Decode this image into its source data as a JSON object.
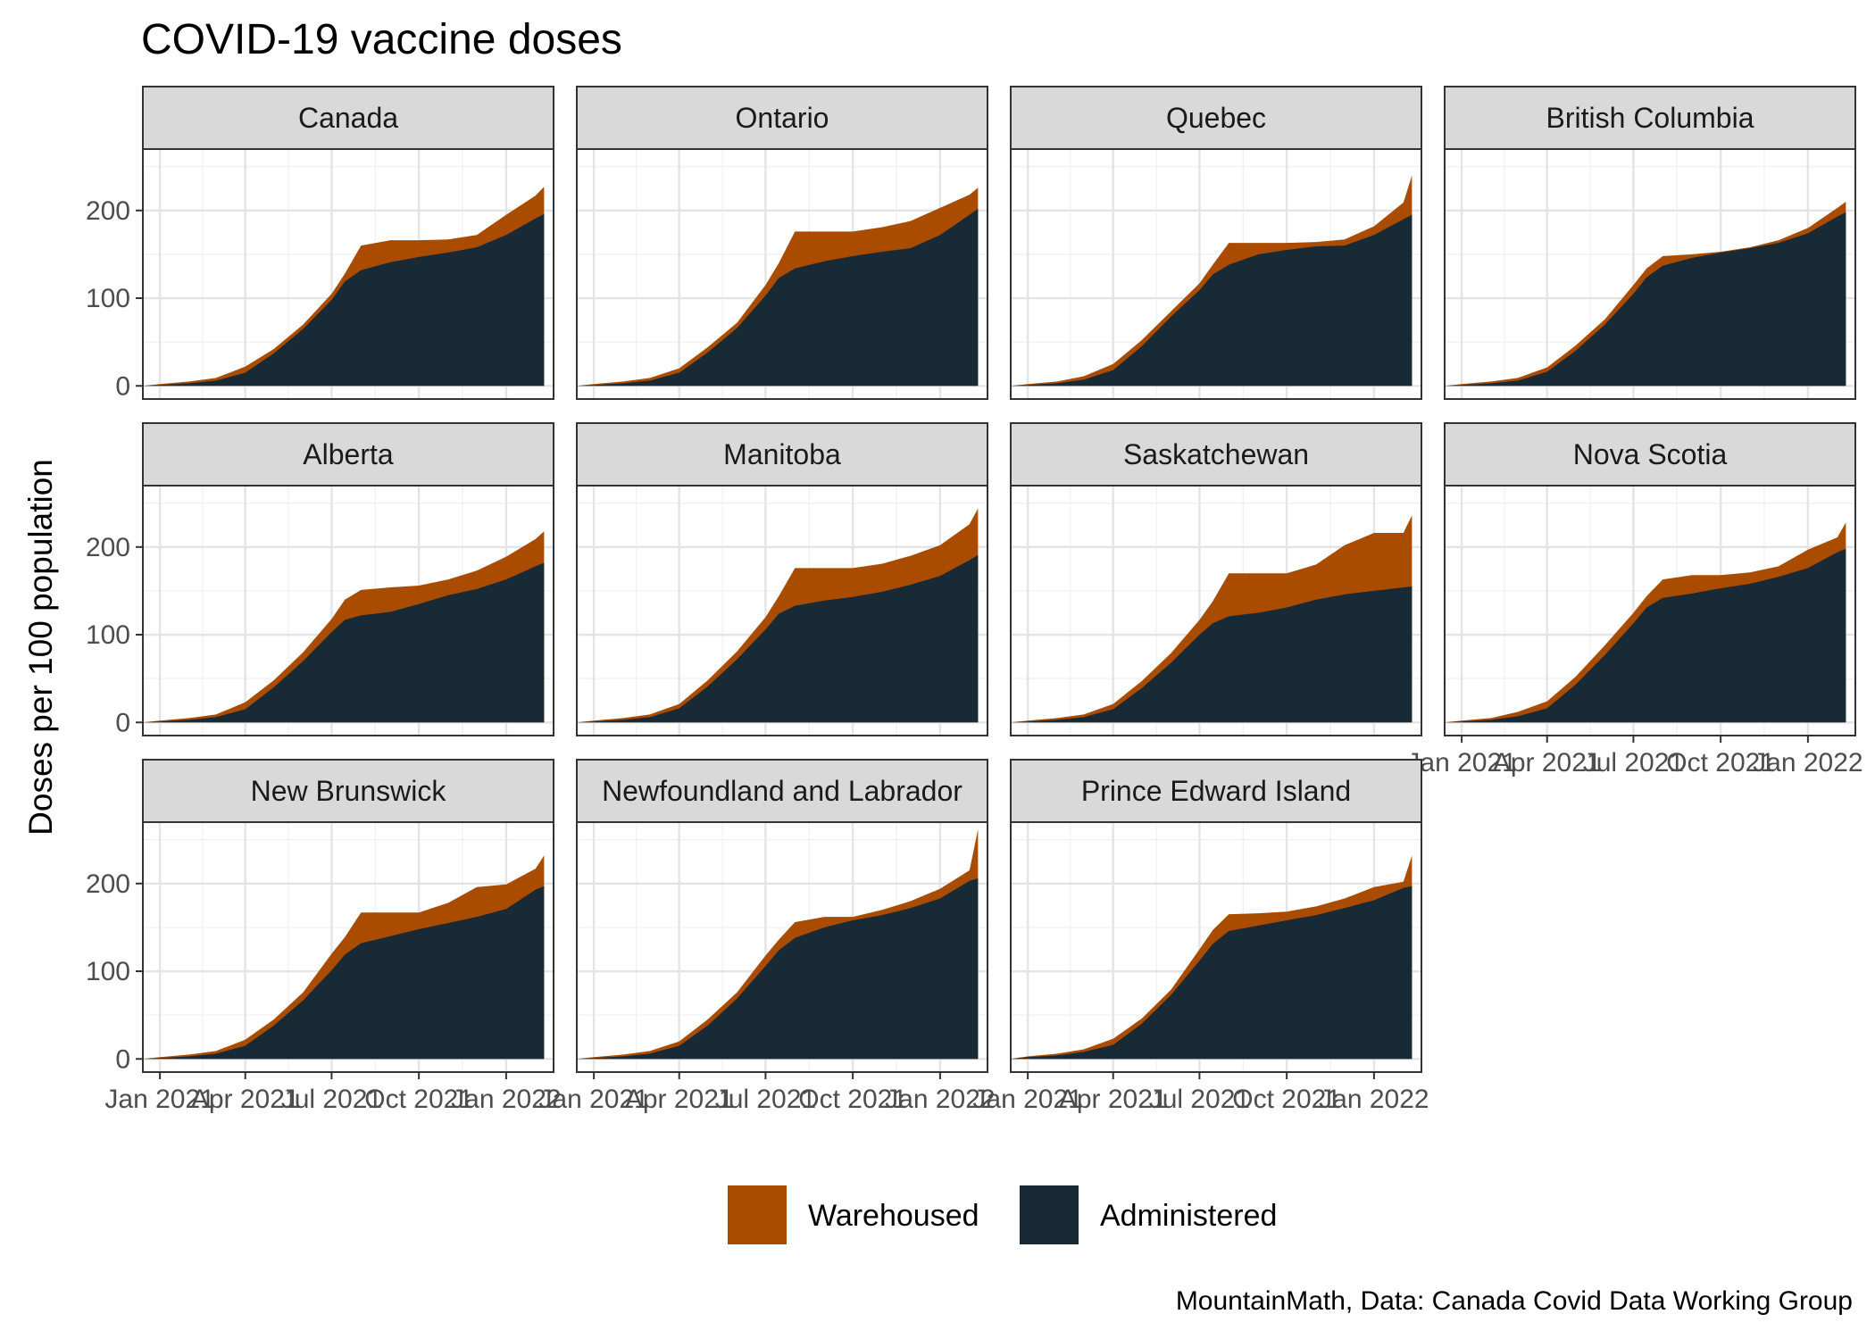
{
  "chart_data": {
    "type": "area",
    "title": "COVID-19 vaccine doses",
    "ylabel": "Doses per 100 population",
    "xlabel": "",
    "caption": "MountainMath, Data: Canada Covid Data Working Group",
    "xlim": [
      "2020-12-14",
      "2022-02-20"
    ],
    "ylim": [
      -15,
      270
    ],
    "x_ticks": [
      "Jan 2021",
      "Apr 2021",
      "Jul 2021",
      "Oct 2021",
      "Jan 2022"
    ],
    "x_tick_dates": [
      "2021-01-01",
      "2021-04-01",
      "2021-07-01",
      "2021-10-01",
      "2022-01-01"
    ],
    "y_ticks": [
      0,
      100,
      200
    ],
    "grid": true,
    "stacked": true,
    "legend_position": "bottom",
    "legend": [
      {
        "name": "Warehoused",
        "color": "#A94C00"
      },
      {
        "name": "Administered",
        "color": "#182A36"
      }
    ],
    "dates": [
      "2020-12-14",
      "2021-01-01",
      "2021-02-01",
      "2021-03-01",
      "2021-04-01",
      "2021-05-01",
      "2021-06-01",
      "2021-07-01",
      "2021-07-15",
      "2021-08-01",
      "2021-09-01",
      "2021-10-01",
      "2021-11-01",
      "2021-12-01",
      "2022-01-01",
      "2022-02-01",
      "2022-02-10"
    ],
    "panels": [
      {
        "region": "Canada",
        "administered": [
          0,
          1,
          3,
          6,
          15,
          37,
          65,
          98,
          119,
          132,
          141,
          147,
          152,
          158,
          172,
          191,
          196
        ],
        "total": [
          0,
          2,
          5,
          9,
          22,
          42,
          70,
          105,
          128,
          160,
          166,
          166,
          167,
          172,
          195,
          217,
          227
        ]
      },
      {
        "region": "Ontario",
        "administered": [
          0,
          1,
          3,
          6,
          15,
          38,
          66,
          103,
          123,
          134,
          142,
          148,
          153,
          157,
          172,
          195,
          202
        ],
        "total": [
          0,
          2,
          5,
          9,
          20,
          44,
          72,
          115,
          140,
          176,
          176,
          176,
          181,
          188,
          203,
          218,
          226
        ]
      },
      {
        "region": "Quebec",
        "administered": [
          0,
          1,
          3,
          7,
          18,
          45,
          79,
          109,
          127,
          138,
          150,
          155,
          159,
          160,
          172,
          190,
          195
        ],
        "total": [
          0,
          2,
          5,
          11,
          25,
          52,
          85,
          117,
          138,
          163,
          163,
          163,
          164,
          167,
          182,
          209,
          240
        ]
      },
      {
        "region": "British Columbia",
        "administered": [
          0,
          1,
          3,
          6,
          16,
          40,
          70,
          105,
          124,
          137,
          146,
          152,
          157,
          163,
          174,
          193,
          198
        ],
        "total": [
          0,
          2,
          5,
          9,
          21,
          46,
          76,
          115,
          134,
          148,
          150,
          153,
          158,
          166,
          180,
          203,
          210
        ]
      },
      {
        "region": "Alberta",
        "administered": [
          0,
          1,
          3,
          6,
          15,
          40,
          70,
          103,
          117,
          122,
          126,
          135,
          145,
          152,
          163,
          178,
          182
        ],
        "total": [
          0,
          2,
          5,
          9,
          23,
          48,
          80,
          118,
          140,
          151,
          154,
          156,
          163,
          173,
          189,
          209,
          218
        ]
      },
      {
        "region": "Manitoba",
        "administered": [
          0,
          1,
          3,
          6,
          16,
          41,
          72,
          106,
          124,
          133,
          139,
          143,
          149,
          157,
          167,
          185,
          191
        ],
        "total": [
          0,
          2,
          5,
          9,
          21,
          48,
          81,
          120,
          144,
          176,
          176,
          176,
          181,
          190,
          202,
          226,
          244
        ]
      },
      {
        "region": "Saskatchewan",
        "administered": [
          0,
          1,
          3,
          6,
          15,
          39,
          68,
          100,
          113,
          121,
          125,
          131,
          140,
          146,
          150,
          154,
          155
        ],
        "total": [
          0,
          2,
          5,
          9,
          21,
          47,
          79,
          117,
          138,
          170,
          170,
          170,
          180,
          202,
          216,
          216,
          236
        ]
      },
      {
        "region": "Nova Scotia",
        "administered": [
          0,
          1,
          3,
          7,
          16,
          43,
          77,
          113,
          131,
          142,
          147,
          153,
          158,
          166,
          176,
          194,
          198
        ],
        "total": [
          0,
          2,
          5,
          12,
          24,
          52,
          88,
          125,
          144,
          163,
          168,
          168,
          171,
          178,
          197,
          211,
          228
        ]
      },
      {
        "region": "New Brunswick",
        "administered": [
          0,
          1,
          3,
          6,
          15,
          38,
          67,
          101,
          119,
          132,
          140,
          148,
          155,
          162,
          171,
          193,
          197
        ],
        "total": [
          0,
          2,
          5,
          9,
          22,
          45,
          76,
          120,
          139,
          167,
          167,
          167,
          178,
          196,
          199,
          217,
          232
        ]
      },
      {
        "region": "Newfoundland and Labrador",
        "administered": [
          0,
          1,
          3,
          6,
          15,
          38,
          69,
          106,
          124,
          138,
          150,
          158,
          164,
          172,
          183,
          203,
          206
        ],
        "total": [
          0,
          2,
          5,
          9,
          20,
          45,
          76,
          118,
          136,
          156,
          162,
          162,
          170,
          180,
          194,
          215,
          262
        ]
      },
      {
        "region": "Prince Edward Island",
        "administered": [
          0,
          2,
          4,
          8,
          16,
          40,
          73,
          112,
          131,
          146,
          152,
          158,
          164,
          172,
          181,
          195,
          197
        ],
        "total": [
          0,
          3,
          6,
          11,
          23,
          46,
          79,
          125,
          147,
          165,
          166,
          168,
          174,
          183,
          196,
          202,
          232
        ]
      }
    ]
  }
}
